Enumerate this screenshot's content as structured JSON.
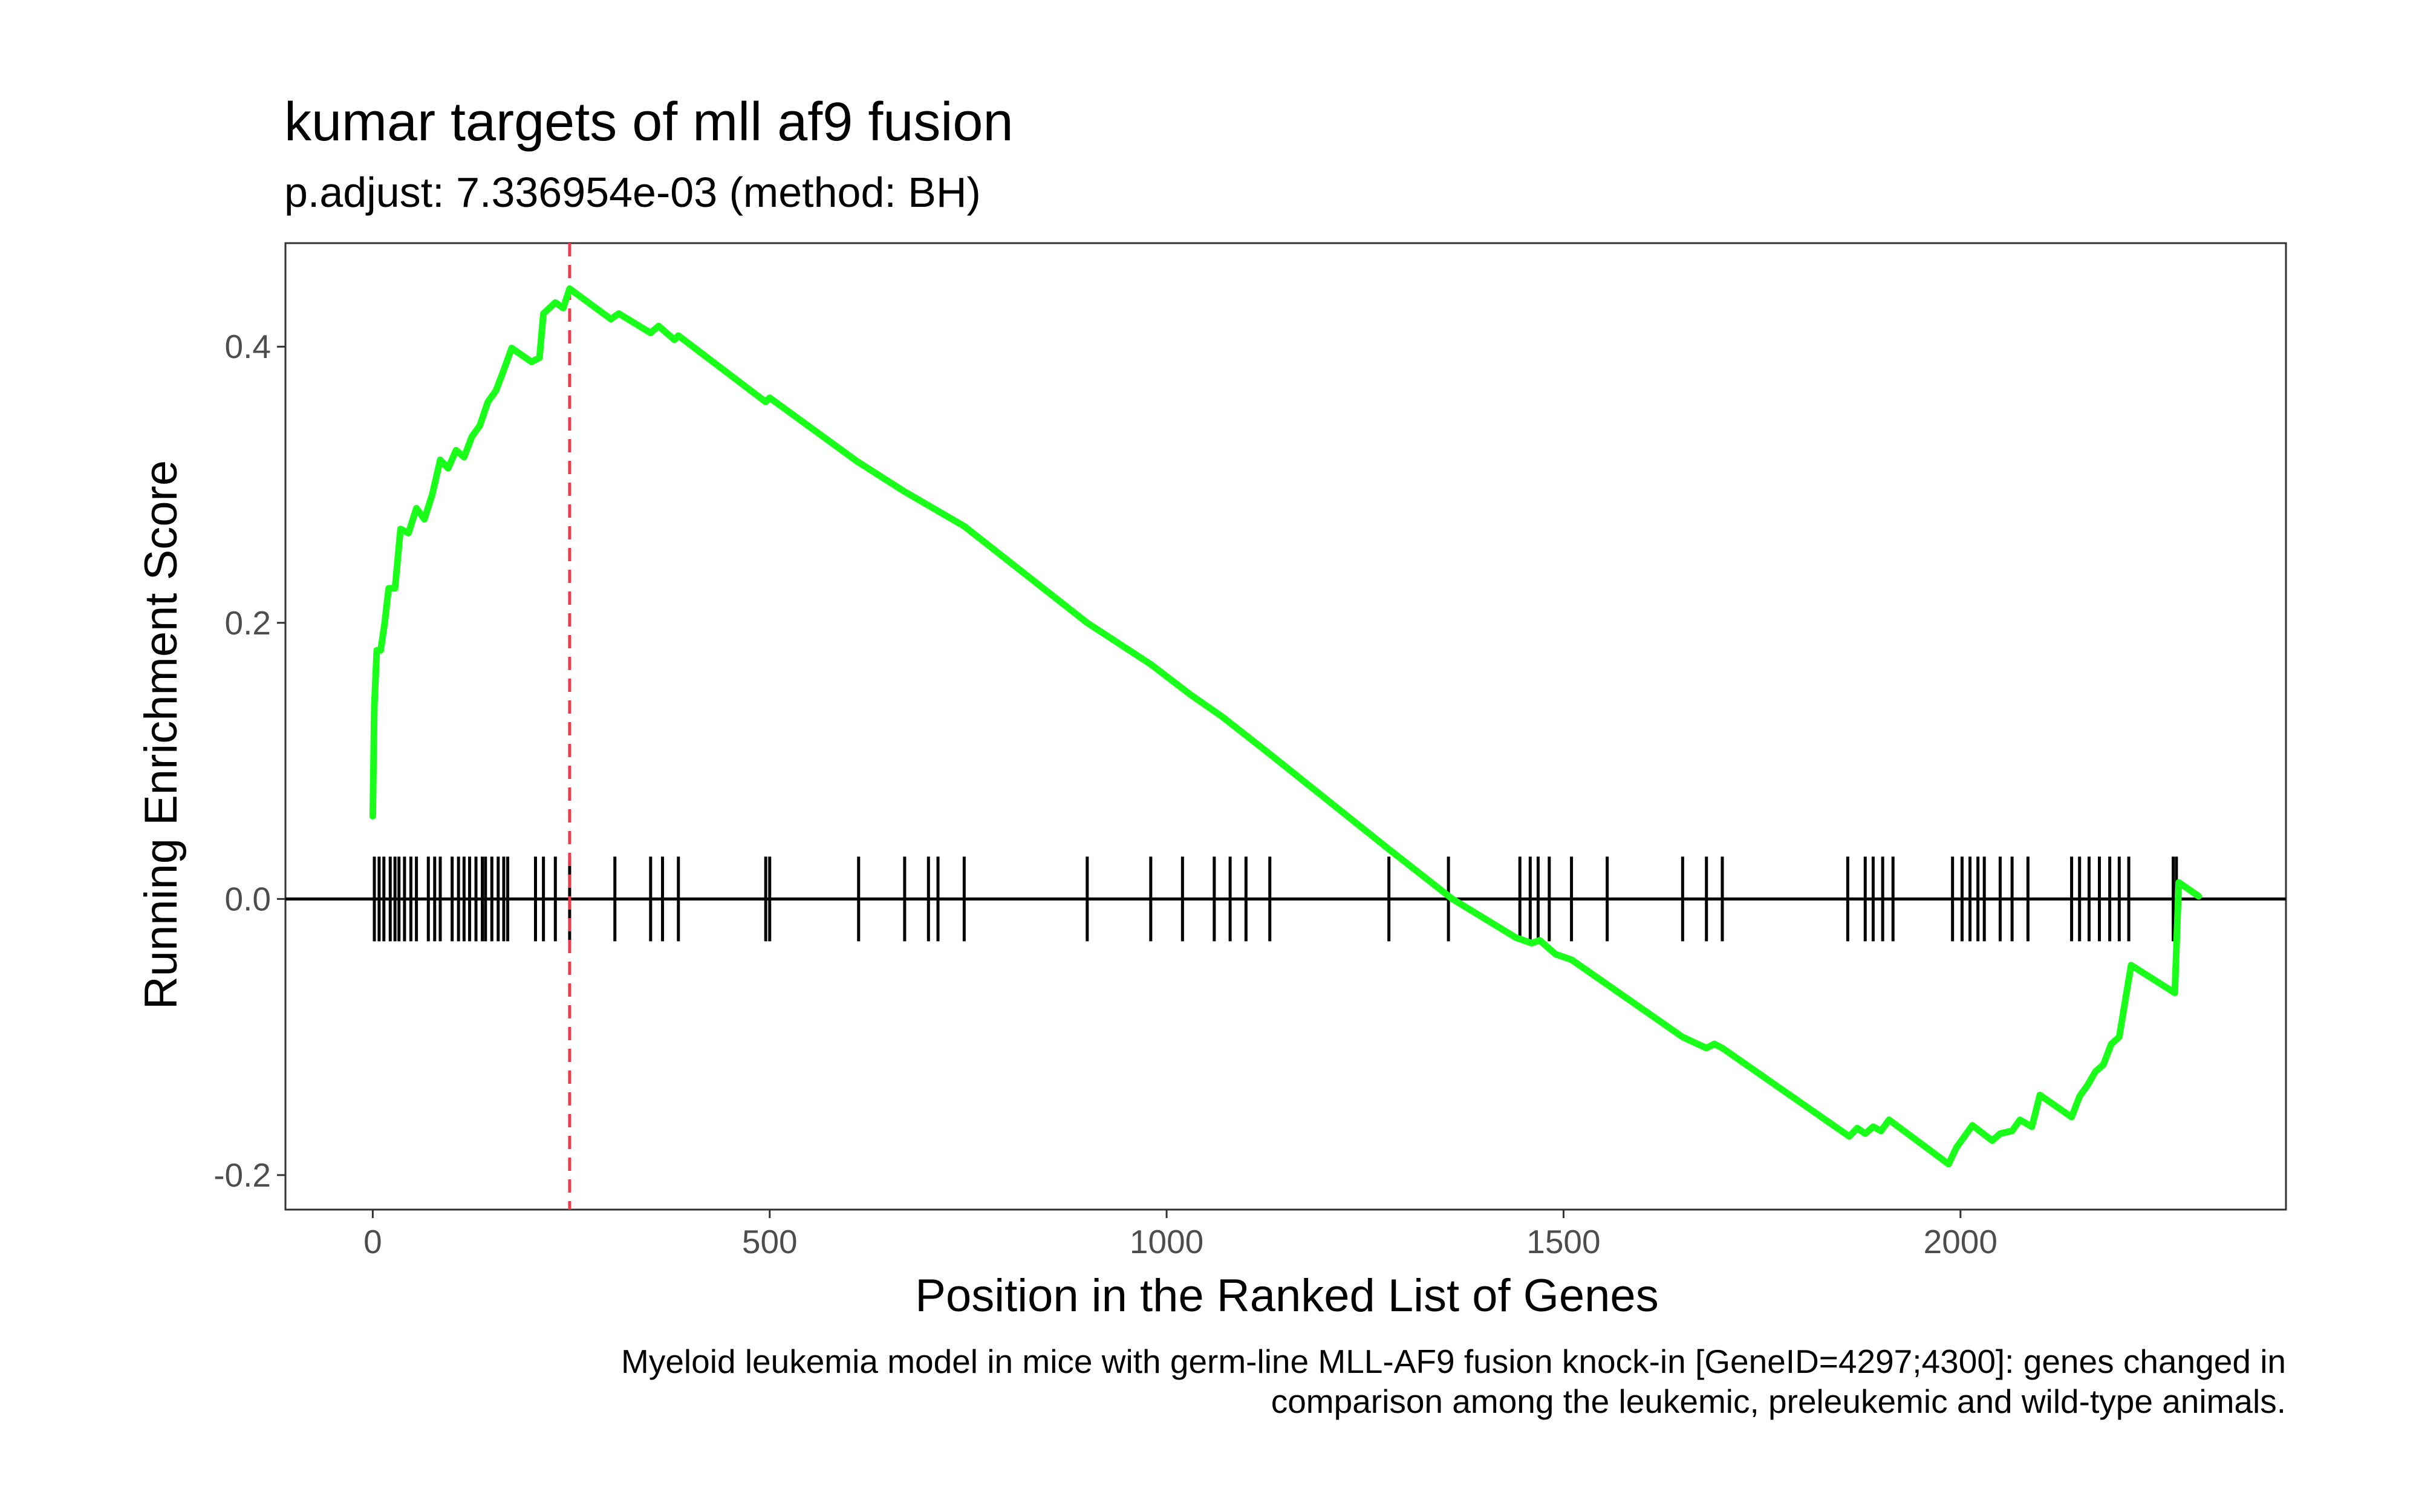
{
  "chart_data": {
    "type": "line",
    "title": "kumar targets of mll af9 fusion",
    "subtitle": "p.adjust: 7.336954e-03 (method: BH)",
    "xlabel": "Position in the Ranked List of Genes",
    "ylabel": "Running Enrichment Score",
    "caption_lines": [
      "Myeloid leukemia model in mice with germ-line MLL-AF9 fusion knock-in [GeneID=4297;4300]: genes changed in",
      "comparison among the leukemic, preleukemic and wild-type animals."
    ],
    "xlim": [
      -110,
      2410
    ],
    "ylim": [
      -0.225,
      0.475
    ],
    "x_ticks": [
      0,
      500,
      1000,
      1500,
      2000
    ],
    "x_tick_labels": [
      "0",
      "500",
      "1000",
      "1500",
      "2000"
    ],
    "y_ticks": [
      -0.2,
      0.0,
      0.2,
      0.4
    ],
    "y_tick_labels": [
      "-0.2",
      "0.0",
      "0.2",
      "0.4"
    ],
    "grid": false,
    "series": [
      {
        "color": "#1aff1a",
        "points": [
          [
            0,
            0.06
          ],
          [
            2,
            0.14
          ],
          [
            5,
            0.18
          ],
          [
            10,
            0.18
          ],
          [
            15,
            0.2
          ],
          [
            20,
            0.225
          ],
          [
            28,
            0.225
          ],
          [
            35,
            0.268
          ],
          [
            45,
            0.265
          ],
          [
            55,
            0.283
          ],
          [
            65,
            0.275
          ],
          [
            75,
            0.293
          ],
          [
            85,
            0.318
          ],
          [
            95,
            0.312
          ],
          [
            105,
            0.325
          ],
          [
            115,
            0.32
          ],
          [
            125,
            0.335
          ],
          [
            135,
            0.343
          ],
          [
            145,
            0.36
          ],
          [
            155,
            0.368
          ],
          [
            165,
            0.383
          ],
          [
            175,
            0.399
          ],
          [
            200,
            0.389
          ],
          [
            210,
            0.392
          ],
          [
            215,
            0.424
          ],
          [
            230,
            0.432
          ],
          [
            240,
            0.428
          ],
          [
            248,
            0.442
          ],
          [
            300,
            0.42
          ],
          [
            310,
            0.424
          ],
          [
            350,
            0.41
          ],
          [
            360,
            0.415
          ],
          [
            380,
            0.405
          ],
          [
            385,
            0.408
          ],
          [
            495,
            0.36
          ],
          [
            500,
            0.363
          ],
          [
            610,
            0.317
          ],
          [
            670,
            0.295
          ],
          [
            700,
            0.285
          ],
          [
            745,
            0.27
          ],
          [
            900,
            0.2
          ],
          [
            980,
            0.17
          ],
          [
            1030,
            0.148
          ],
          [
            1070,
            0.132
          ],
          [
            1130,
            0.105
          ],
          [
            1280,
            0.036
          ],
          [
            1360,
            0.0
          ],
          [
            1440,
            -0.028
          ],
          [
            1460,
            -0.032
          ],
          [
            1470,
            -0.03
          ],
          [
            1490,
            -0.04
          ],
          [
            1510,
            -0.044
          ],
          [
            1550,
            -0.06
          ],
          [
            1650,
            -0.1
          ],
          [
            1680,
            -0.108
          ],
          [
            1690,
            -0.105
          ],
          [
            1700,
            -0.108
          ],
          [
            1860,
            -0.172
          ],
          [
            1870,
            -0.166
          ],
          [
            1880,
            -0.17
          ],
          [
            1890,
            -0.165
          ],
          [
            1900,
            -0.168
          ],
          [
            1910,
            -0.16
          ],
          [
            1985,
            -0.192
          ],
          [
            1995,
            -0.18
          ],
          [
            2005,
            -0.172
          ],
          [
            2015,
            -0.164
          ],
          [
            2040,
            -0.175
          ],
          [
            2050,
            -0.17
          ],
          [
            2065,
            -0.168
          ],
          [
            2075,
            -0.16
          ],
          [
            2090,
            -0.165
          ],
          [
            2100,
            -0.142
          ],
          [
            2140,
            -0.158
          ],
          [
            2150,
            -0.143
          ],
          [
            2160,
            -0.135
          ],
          [
            2170,
            -0.125
          ],
          [
            2180,
            -0.12
          ],
          [
            2190,
            -0.105
          ],
          [
            2200,
            -0.1
          ],
          [
            2210,
            -0.065
          ],
          [
            2215,
            -0.048
          ],
          [
            2270,
            -0.068
          ],
          [
            2275,
            0.012
          ],
          [
            2300,
            0.002
          ]
        ]
      }
    ],
    "gene_hits": [
      2,
      8,
      14,
      22,
      28,
      33,
      40,
      48,
      55,
      70,
      78,
      85,
      100,
      108,
      115,
      122,
      130,
      138,
      142,
      150,
      158,
      165,
      170,
      205,
      215,
      230,
      248,
      305,
      350,
      365,
      385,
      495,
      500,
      612,
      670,
      700,
      712,
      745,
      900,
      980,
      1020,
      1060,
      1080,
      1100,
      1130,
      1280,
      1355,
      1445,
      1458,
      1468,
      1482,
      1510,
      1555,
      1650,
      1680,
      1700,
      1858,
      1880,
      1890,
      1902,
      1915,
      1990,
      2002,
      2012,
      2022,
      2030,
      2050,
      2065,
      2085,
      2140,
      2150,
      2162,
      2175,
      2188,
      2200,
      2212,
      2268,
      2272
    ],
    "es_peak_position": 248,
    "peak_line_color": "#ee3b4b",
    "line_color": "#1aff1a"
  }
}
